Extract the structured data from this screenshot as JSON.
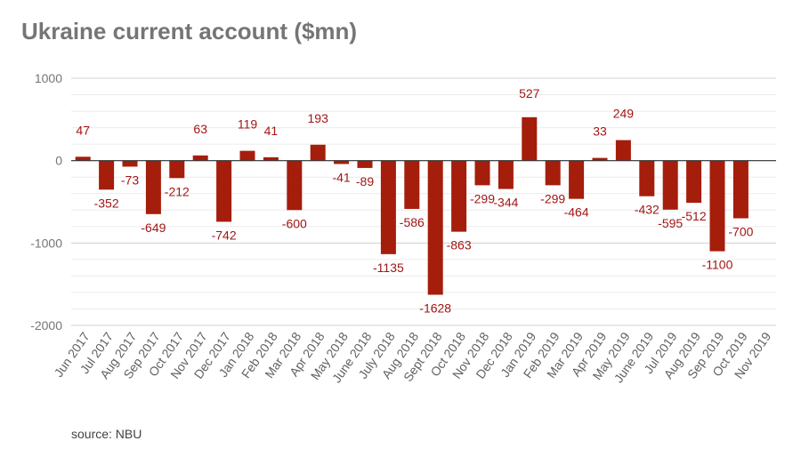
{
  "chart_data": {
    "type": "bar",
    "title": "Ukraine current account ($mn)",
    "source": "source: NBU",
    "xlabel": "",
    "ylabel": "",
    "ylim": [
      -2000,
      1000
    ],
    "yticks": [
      1000,
      0,
      -1000,
      -2000
    ],
    "grid": true,
    "bar_color": "#a51d0b",
    "categories": [
      "Jun 2017",
      "Jul 2017",
      "Aug 2017",
      "Sep 2017",
      "Oct 2017",
      "Nov 2017",
      "Dec 2017",
      "Jan 2018",
      "Feb 2018",
      "Mar 2018",
      "Apr 2018",
      "May 2018",
      "June 2018",
      "July 2018",
      "Aug 2018",
      "Sept 2018",
      "Oct 2018",
      "Nov 2018",
      "Dec 2018",
      "Jan 2019",
      "Feb 2019",
      "Mar 2019",
      "Apr 2019",
      "May 2019",
      "June 2019",
      "Jul 2019",
      "Aug 2019",
      "Sep 2019",
      "Oct 2019",
      "Nov 2019"
    ],
    "values": [
      47,
      -352,
      -73,
      -649,
      -212,
      63,
      -742,
      119,
      41,
      -600,
      193,
      -41,
      -89,
      -1135,
      -586,
      -1628,
      -863,
      -299,
      -344,
      527,
      -299,
      -464,
      33,
      249,
      -432,
      -595,
      -512,
      -1100,
      -700,
      null
    ],
    "labels": [
      "47",
      "-352",
      "-73",
      "-649",
      "-212",
      "63",
      "-742",
      "119",
      "41",
      "-600",
      "193",
      "-41",
      "-89",
      "-1135",
      "-586",
      "-1628",
      "-863",
      "-299",
      "-344",
      "527",
      "-299",
      "-464",
      "33",
      "249",
      "-432",
      "-595",
      "-512",
      "-1100",
      "-700",
      ""
    ]
  }
}
